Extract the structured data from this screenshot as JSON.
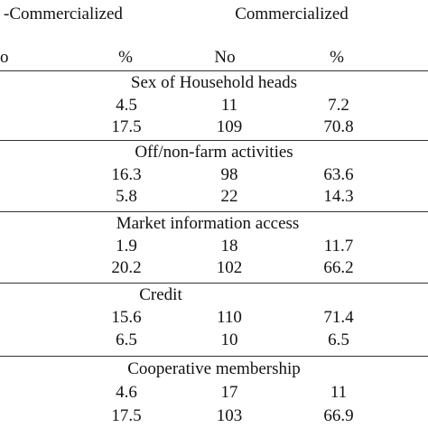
{
  "header": {
    "group_left": "-Commercialized",
    "group_right": "Commercialized",
    "col_left_no": "o",
    "col_left_pct": "%",
    "col_right_no": "No",
    "col_right_pct": "%"
  },
  "sections": [
    {
      "title": "Sex of Household heads",
      "rows": [
        {
          "pct_non": "4.5",
          "no_com": "11",
          "pct_com": "7.2"
        },
        {
          "pct_non": "17.5",
          "no_com": "109",
          "pct_com": "70.8"
        }
      ]
    },
    {
      "title": "Off/non-farm activities",
      "rows": [
        {
          "pct_non": "16.3",
          "no_com": "98",
          "pct_com": "63.6"
        },
        {
          "pct_non": "5.8",
          "no_com": "22",
          "pct_com": "14.3"
        }
      ]
    },
    {
      "title": "Market information access",
      "rows": [
        {
          "pct_non": "1.9",
          "no_com": "18",
          "pct_com": "11.7"
        },
        {
          "pct_non": "20.2",
          "no_com": "102",
          "pct_com": "66.2"
        }
      ]
    },
    {
      "title": "Credit",
      "rows": [
        {
          "pct_non": "15.6",
          "no_com": "110",
          "pct_com": "71.4"
        },
        {
          "pct_non": "6.5",
          "no_com": "10",
          "pct_com": "6.5"
        }
      ]
    },
    {
      "title": "Cooperative membership",
      "rows": [
        {
          "pct_non": "4.6",
          "no_com": "17",
          "pct_com": "11"
        },
        {
          "pct_non": "17.5",
          "no_com": "103",
          "pct_com": "66.9"
        }
      ]
    }
  ]
}
